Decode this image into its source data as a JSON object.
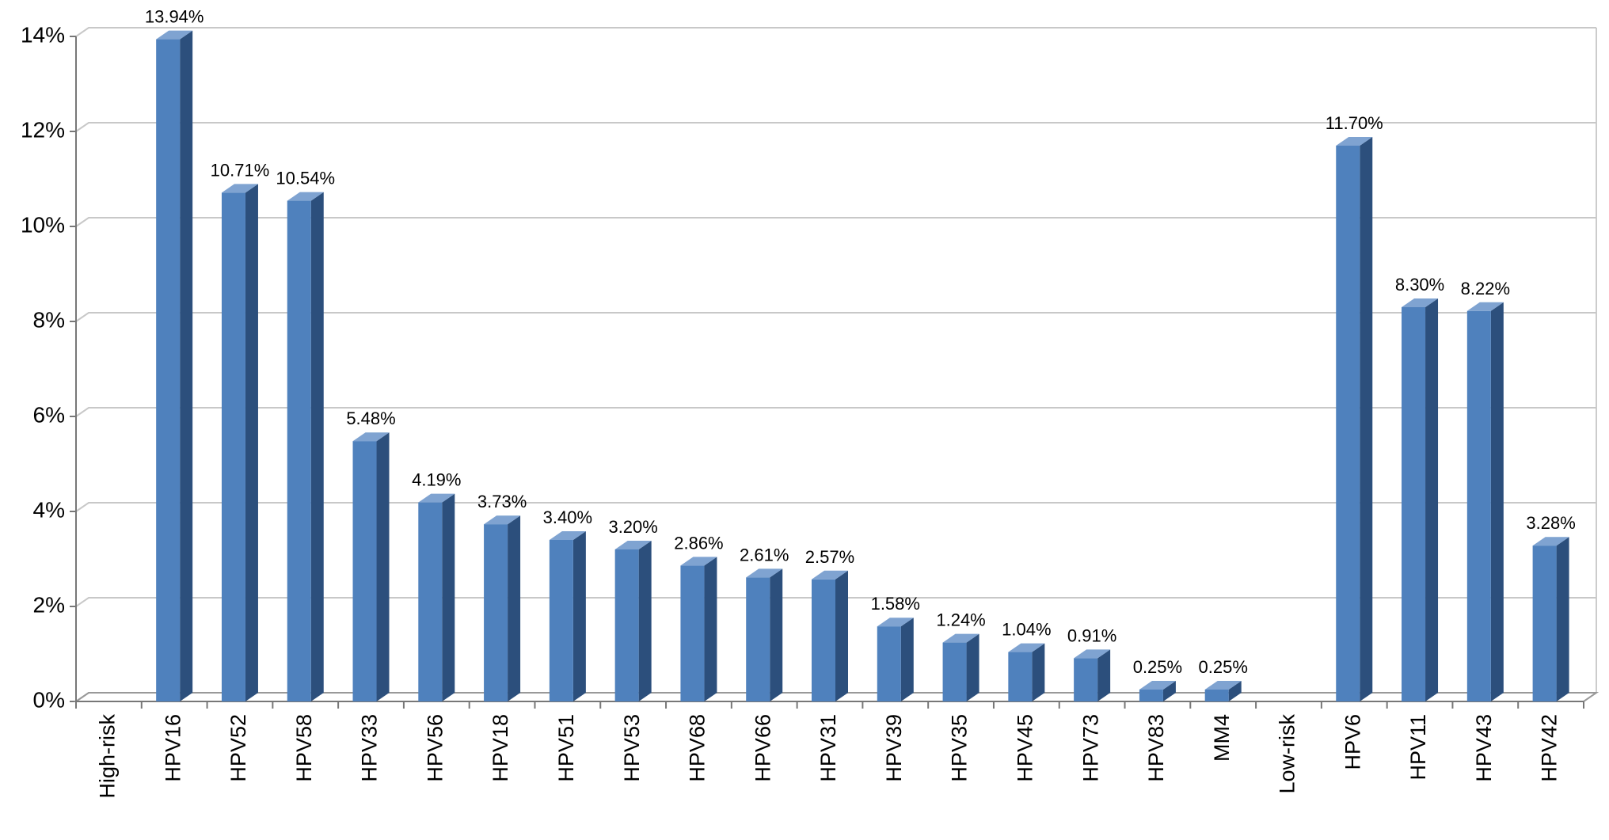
{
  "chart_data": {
    "type": "bar",
    "categories": [
      "High-risk",
      "HPV16",
      "HPV52",
      "HPV58",
      "HPV33",
      "HPV56",
      "HPV18",
      "HPV51",
      "HPV53",
      "HPV68",
      "HPV66",
      "HPV31",
      "HPV39",
      "HPV35",
      "HPV45",
      "HPV73",
      "HPV83",
      "MM4",
      "Low-risk",
      "HPV6",
      "HPV11",
      "HPV43",
      "HPV42"
    ],
    "values": [
      null,
      13.94,
      10.71,
      10.54,
      5.48,
      4.19,
      3.73,
      3.4,
      3.2,
      2.86,
      2.61,
      2.57,
      1.58,
      1.24,
      1.04,
      0.91,
      0.25,
      0.25,
      null,
      11.7,
      8.3,
      8.22,
      3.28
    ],
    "value_labels": [
      null,
      "13.94%",
      "10.71%",
      "10.54%",
      "5.48%",
      "4.19%",
      "3.73%",
      "3.40%",
      "3.20%",
      "2.86%",
      "2.61%",
      "2.57%",
      "1.58%",
      "1.24%",
      "1.04%",
      "0.91%",
      "0.25%",
      "0.25%",
      null,
      "11.70%",
      "8.30%",
      "8.22%",
      "3.28%"
    ],
    "color": "#4f81bd",
    "ylim": [
      0,
      14
    ],
    "yticks": [
      {
        "value": 0,
        "label": "0%"
      },
      {
        "value": 2,
        "label": "2%"
      },
      {
        "value": 4,
        "label": "4%"
      },
      {
        "value": 6,
        "label": "6%"
      },
      {
        "value": 8,
        "label": "8%"
      },
      {
        "value": 10,
        "label": "10%"
      },
      {
        "value": 12,
        "label": "12%"
      },
      {
        "value": 14,
        "label": "14%"
      }
    ],
    "grid": true
  }
}
